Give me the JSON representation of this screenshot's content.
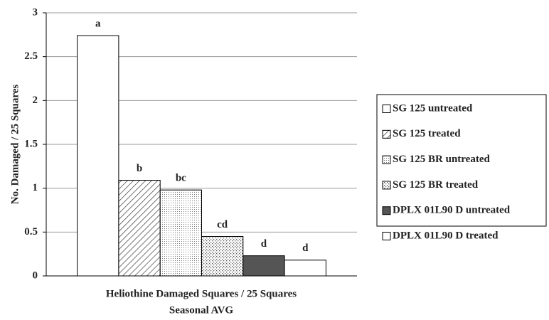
{
  "chart_data": {
    "type": "bar",
    "ylabel": "No. Damaged / 25 Squares",
    "categories": [
      "Heliothine Damaged Squares / 25 Squares"
    ],
    "xlabel": "Seasonal AVG",
    "series": [
      {
        "name": "SG 125 untreated",
        "color": "#ffffff",
        "pattern": "none",
        "values": [
          2.74
        ],
        "annotation": "a"
      },
      {
        "name": "SG 125 treated",
        "color": "#ffffff",
        "pattern": "hatch",
        "values": [
          1.09
        ],
        "annotation": "b"
      },
      {
        "name": "SG 125 BR untreated",
        "color": "#ffffff",
        "pattern": "fine-dots",
        "values": [
          0.98
        ],
        "annotation": "bc"
      },
      {
        "name": "SG 125 BR treated",
        "color": "#ffffff",
        "pattern": "dots",
        "values": [
          0.45
        ],
        "annotation": "cd"
      },
      {
        "name": "DPLX 01L90 D untreated",
        "color": "#555555",
        "pattern": "none",
        "values": [
          0.23
        ],
        "annotation": "d"
      },
      {
        "name": "DPLX 01L90 D treated",
        "color": "#ffffff",
        "pattern": "none",
        "values": [
          0.18
        ],
        "annotation": "d"
      }
    ],
    "ylim": [
      0,
      3
    ],
    "yticks": [
      0,
      0.5,
      1,
      1.5,
      2,
      2.5,
      3
    ],
    "grid": true,
    "legend": "right"
  }
}
